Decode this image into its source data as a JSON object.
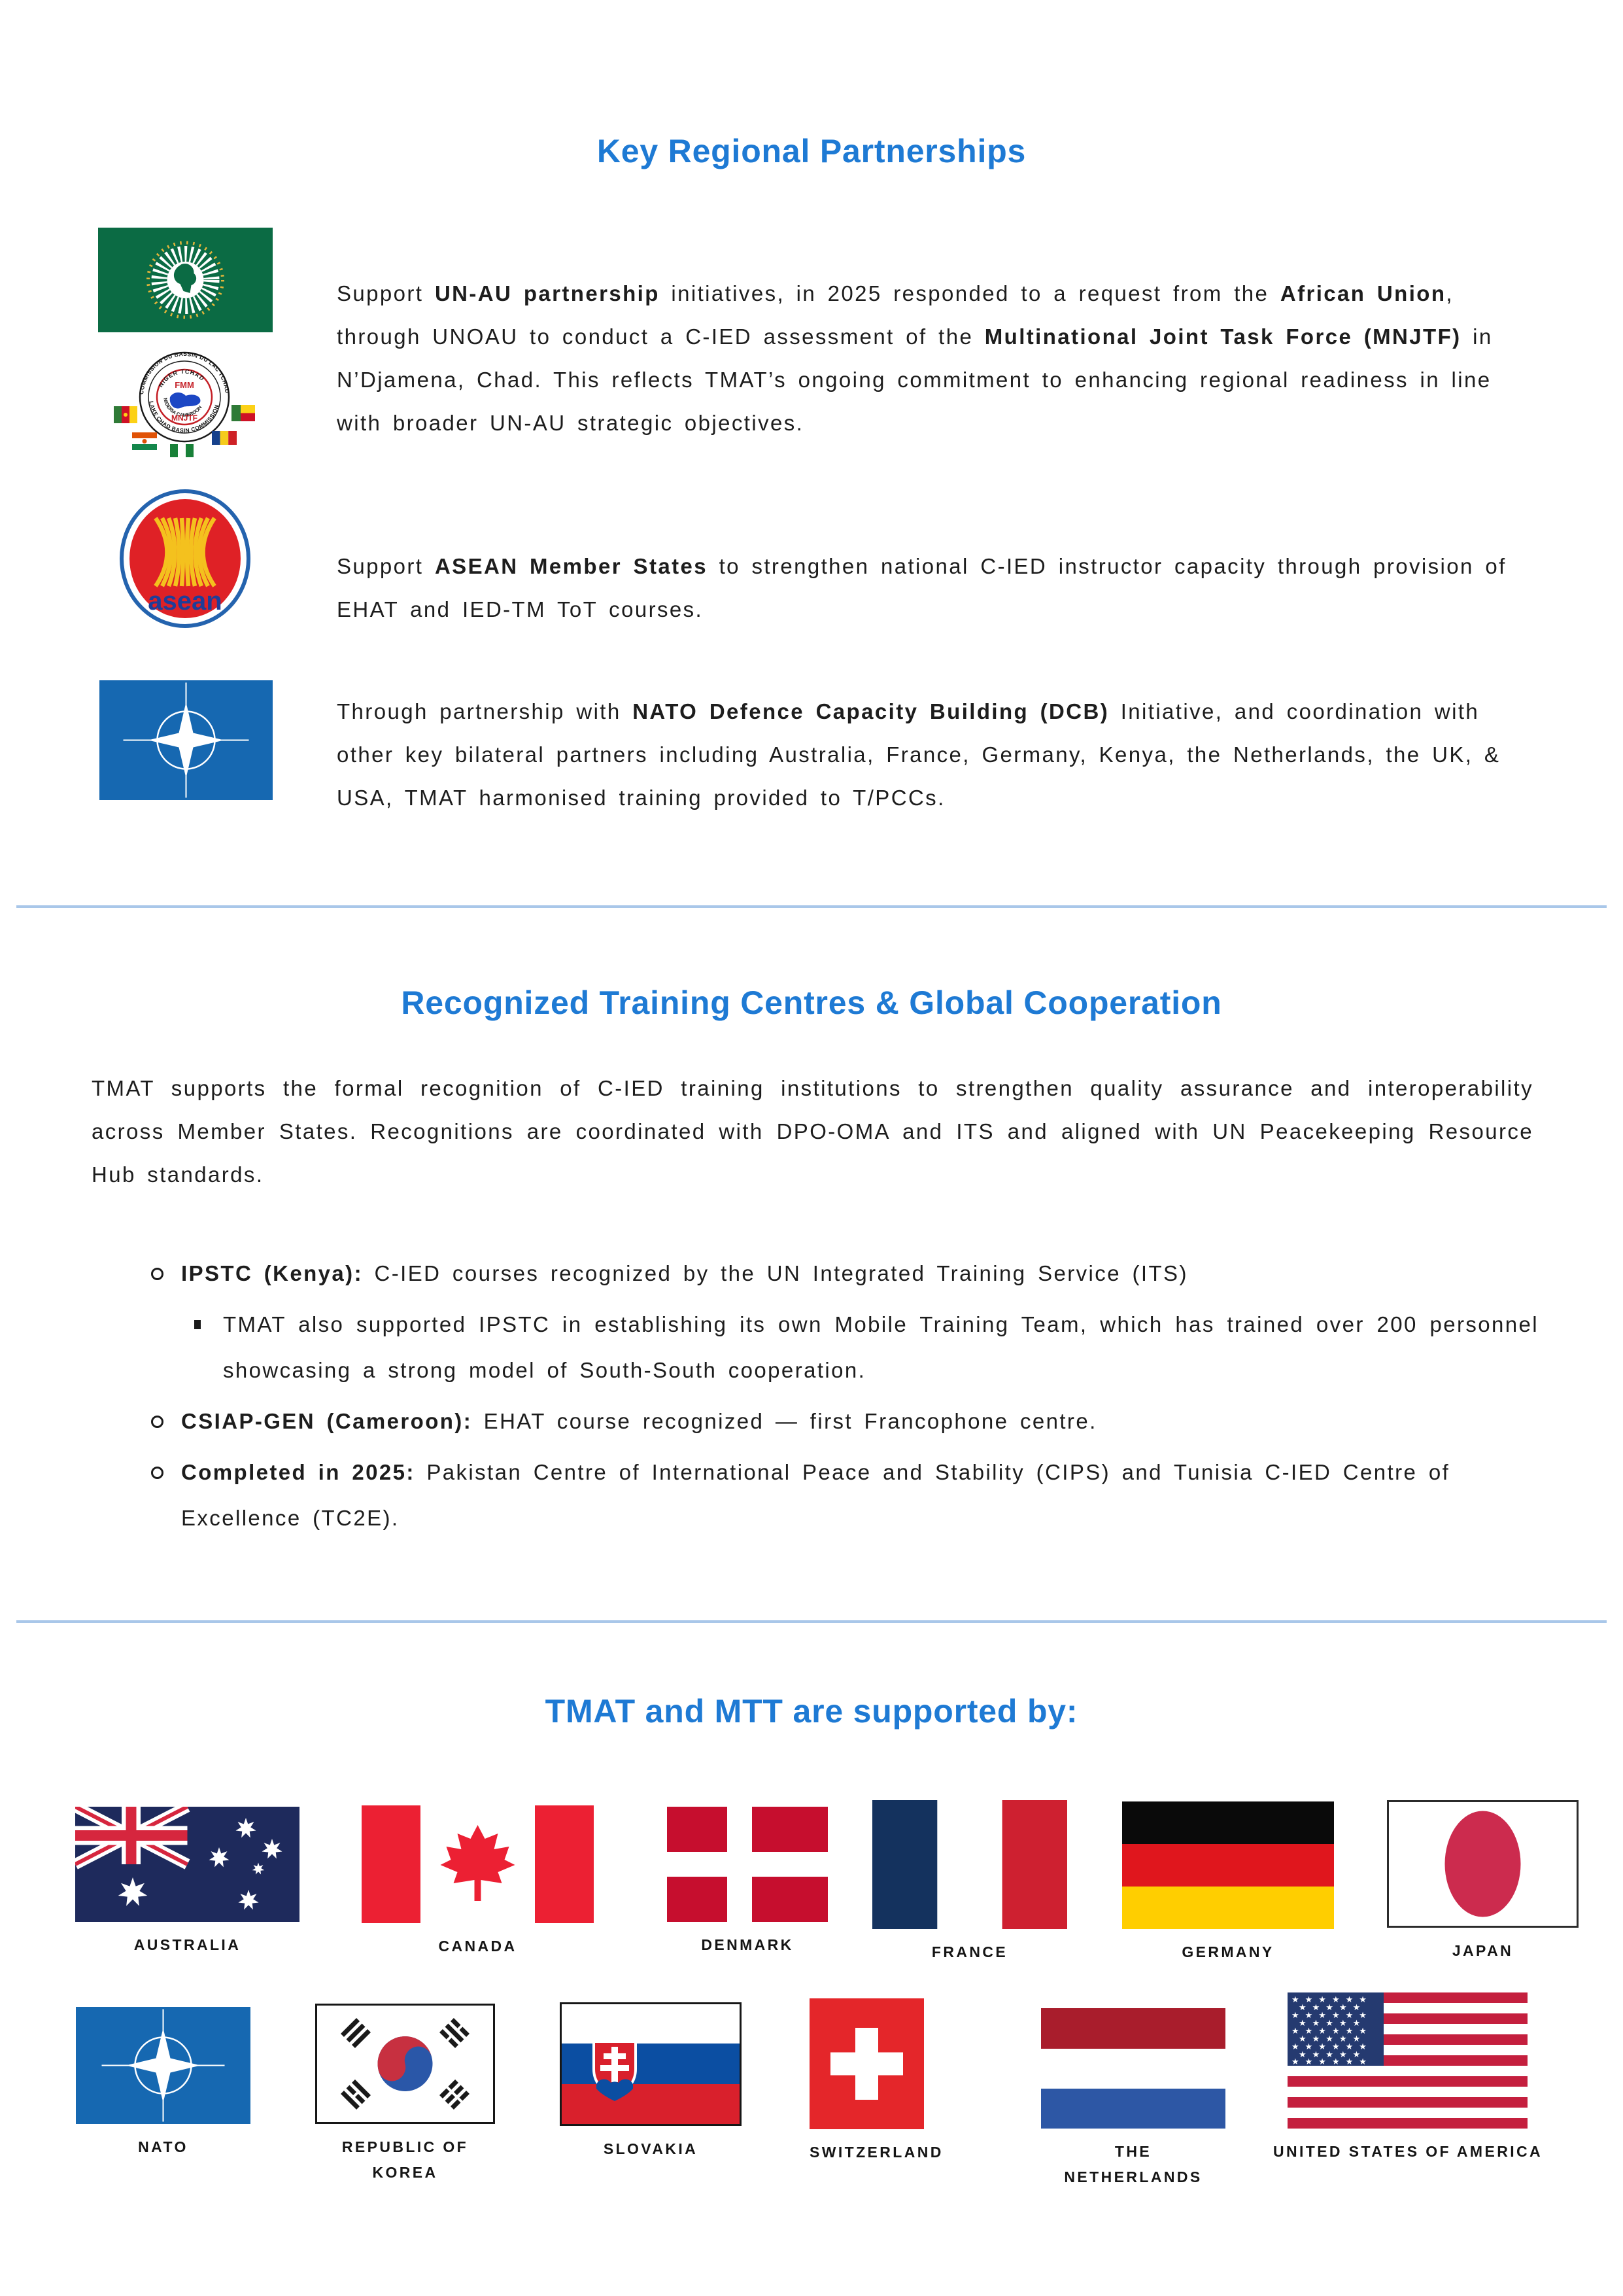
{
  "section1": {
    "title": "Key Regional Partnerships",
    "items": [
      {
        "logo": "african-union-and-mnjtf",
        "segments": [
          {
            "t": "Support ",
            "b": false
          },
          {
            "t": "UN-AU partnership",
            "b": true
          },
          {
            "t": " initiatives, in 2025 responded to a request from the ",
            "b": false
          },
          {
            "t": "African Union",
            "b": true
          },
          {
            "t": ", through UNOAU to conduct a C-IED assessment of the ",
            "b": false
          },
          {
            "t": "Multinational Joint Task Force (MNJTF)",
            "b": true
          },
          {
            "t": " in N’Djamena, Chad. This reflects TMAT’s ongoing commitment to enhancing regional readiness in line with broader UN-AU strategic objectives.",
            "b": false
          }
        ]
      },
      {
        "logo": "asean",
        "segments": [
          {
            "t": "Support ",
            "b": false
          },
          {
            "t": "ASEAN Member States",
            "b": true
          },
          {
            "t": " to strengthen national C-IED instructor capacity through provision of EHAT and IED-TM ToT courses.",
            "b": false
          }
        ]
      },
      {
        "logo": "nato",
        "segments": [
          {
            "t": "Through partnership with ",
            "b": false
          },
          {
            "t": "NATO Defence Capacity Building (DCB)",
            "b": true
          },
          {
            "t": " Initiative, and coordination with other key bilateral partners including Australia, France, Germany, Kenya, the Netherlands, the UK, & USA, TMAT harmonised training provided to T/PCCs.",
            "b": false
          }
        ]
      }
    ]
  },
  "section2": {
    "title": "Recognized Training Centres & Global Cooperation",
    "intro_segments": [
      {
        "t": "TMAT supports the formal recognition of C-IED training institutions to strengthen quality assurance and interoperability across Member States.  Recognitions are coordinated with DPO-OMA and ITS and aligned with UN Peacekeeping Resource Hub standards.",
        "b": false
      }
    ],
    "bullets": [
      {
        "segments": [
          {
            "t": "IPSTC (Kenya):",
            "b": true
          },
          {
            "t": "  C-IED courses recognized by the UN Integrated Training Service (ITS)",
            "b": false
          }
        ],
        "sub_segments": [
          {
            "t": "TMAT also supported IPSTC in establishing its own Mobile Training Team, which has trained over 200 personnel showcasing a strong model of South-South cooperation.",
            "b": false
          }
        ]
      },
      {
        "segments": [
          {
            "t": "CSIAP-GEN (Cameroon):",
            "b": true
          },
          {
            "t": "  EHAT course recognized — first Francophone centre.",
            "b": false
          }
        ]
      },
      {
        "segments": [
          {
            "t": "Completed in 2025:",
            "b": true
          },
          {
            "t": " Pakistan Centre of International Peace and Stability (CIPS) and Tunisia C-IED Centre of Excellence (TC2E).",
            "b": false
          }
        ]
      }
    ]
  },
  "supporters": {
    "title": "TMAT and MTT are supported by:",
    "row1": [
      {
        "name": "australia",
        "label": "AUSTRALIA"
      },
      {
        "name": "canada",
        "label": "CANADA"
      },
      {
        "name": "denmark",
        "label": "DENMARK"
      },
      {
        "name": "france",
        "label": "FRANCE"
      },
      {
        "name": "germany",
        "label": "GERMANY"
      },
      {
        "name": "japan",
        "label": "JAPAN"
      }
    ],
    "row2": [
      {
        "name": "nato",
        "label": "NATO"
      },
      {
        "name": "republic-of-korea",
        "label": "REPUBLIC OF KOREA"
      },
      {
        "name": "slovakia",
        "label": "SLOVAKIA"
      },
      {
        "name": "switzerland",
        "label": "SWITZERLAND"
      },
      {
        "name": "netherlands",
        "label": "THE\nNETHERLANDS"
      },
      {
        "name": "usa",
        "label": "UNITED STATES OF AMERICA"
      }
    ]
  },
  "logos": {
    "mnjtf": {
      "outer_top": "COMMISSION DU BASSIN DU LAC TCHAD",
      "outer_bottom": "LAKE CHAD BASIN COMMISSION",
      "inner_top": "NIGER TCHAD",
      "inner_bottom": "NIGERIA CAMEROON",
      "fmm": "FMM",
      "mnjtf": "MNJTF"
    },
    "asean": {
      "wordmark": "asean"
    }
  },
  "colors": {
    "accent_blue": "#1e7ad4",
    "divider_blue": "#a9c7e9",
    "body_text": "#1d1d1d",
    "nato_blue": "#1668b1",
    "au_green": "#0b6b44",
    "asean_red": "#df2126"
  }
}
